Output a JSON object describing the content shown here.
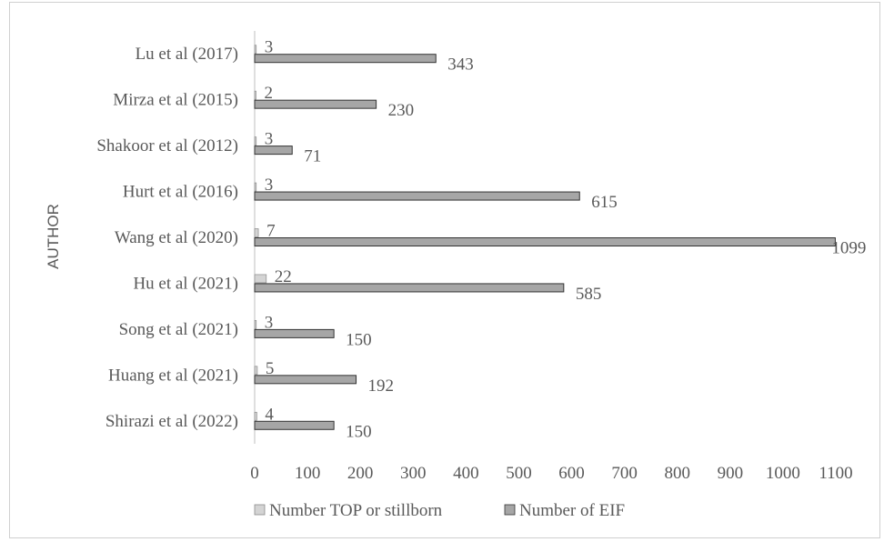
{
  "chart_data": {
    "type": "bar",
    "orientation": "horizontal",
    "ylabel": "AUTHOR",
    "xlabel": "",
    "xlim": [
      0,
      1100
    ],
    "xticks": [
      0,
      100,
      200,
      300,
      400,
      500,
      600,
      700,
      800,
      900,
      1000,
      1100
    ],
    "categories": [
      "Lu et al (2017)",
      "Mirza et al (2015)",
      "Shakoor et al (2012)",
      "Hurt et al (2016)",
      "Wang et al (2020)",
      "Hu et al (2021)",
      "Song et al (2021)",
      "Huang et al (2021)",
      "Shirazi et al (2022)"
    ],
    "series": [
      {
        "name": "Number TOP or stillborn",
        "color": "#d4d4d4",
        "values": [
          3,
          2,
          3,
          3,
          7,
          22,
          3,
          5,
          4
        ]
      },
      {
        "name": "Number of EIF",
        "color": "#a6a6a6",
        "values": [
          343,
          230,
          71,
          615,
          1099,
          585,
          150,
          192,
          150
        ]
      }
    ],
    "grid": false,
    "legend_position": "bottom",
    "data_labels": true
  }
}
